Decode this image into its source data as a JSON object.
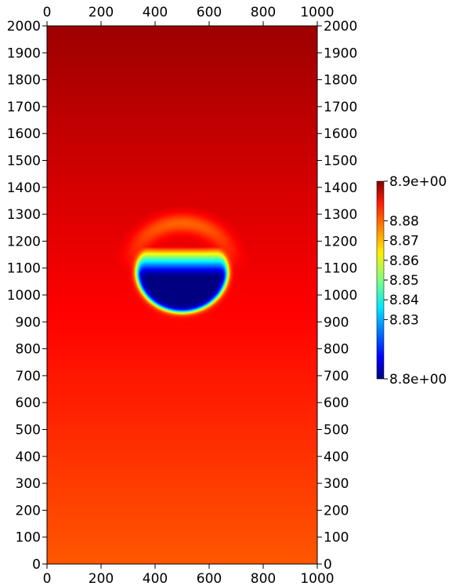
{
  "chart_data": {
    "type": "heatmap",
    "title": "",
    "xlabel": "",
    "ylabel": "",
    "xlim": [
      0,
      1000
    ],
    "ylim": [
      0,
      2000
    ],
    "x_ticks": [
      "0",
      "200",
      "400",
      "600",
      "800",
      "1000"
    ],
    "y_ticks": [
      "0",
      "100",
      "200",
      "300",
      "400",
      "500",
      "600",
      "700",
      "800",
      "900",
      "1000",
      "1100",
      "1200",
      "1300",
      "1400",
      "1500",
      "1600",
      "1700",
      "1800",
      "1900",
      "2000"
    ],
    "field": {
      "background_min": 8.879,
      "background_max": 8.897,
      "gradient": "increases from bottom (y=0) to top (y=2000)",
      "anomaly": {
        "shape": "cap / bubble",
        "center_x": 500,
        "center_y": 1090,
        "radius_x": 180,
        "radius_y": 165,
        "core_value": 8.8
      }
    },
    "colorbar": {
      "min": 8.8,
      "max": 8.9,
      "colormap": "jet",
      "tick_values": [
        8.9,
        8.88,
        8.87,
        8.86,
        8.85,
        8.84,
        8.83,
        8.8
      ],
      "tick_labels": [
        "8.9e+00",
        "8.88",
        "8.87",
        "8.86",
        "8.85",
        "8.84",
        "8.83",
        "8.8e+00"
      ],
      "placement": "right"
    },
    "grid": false
  }
}
